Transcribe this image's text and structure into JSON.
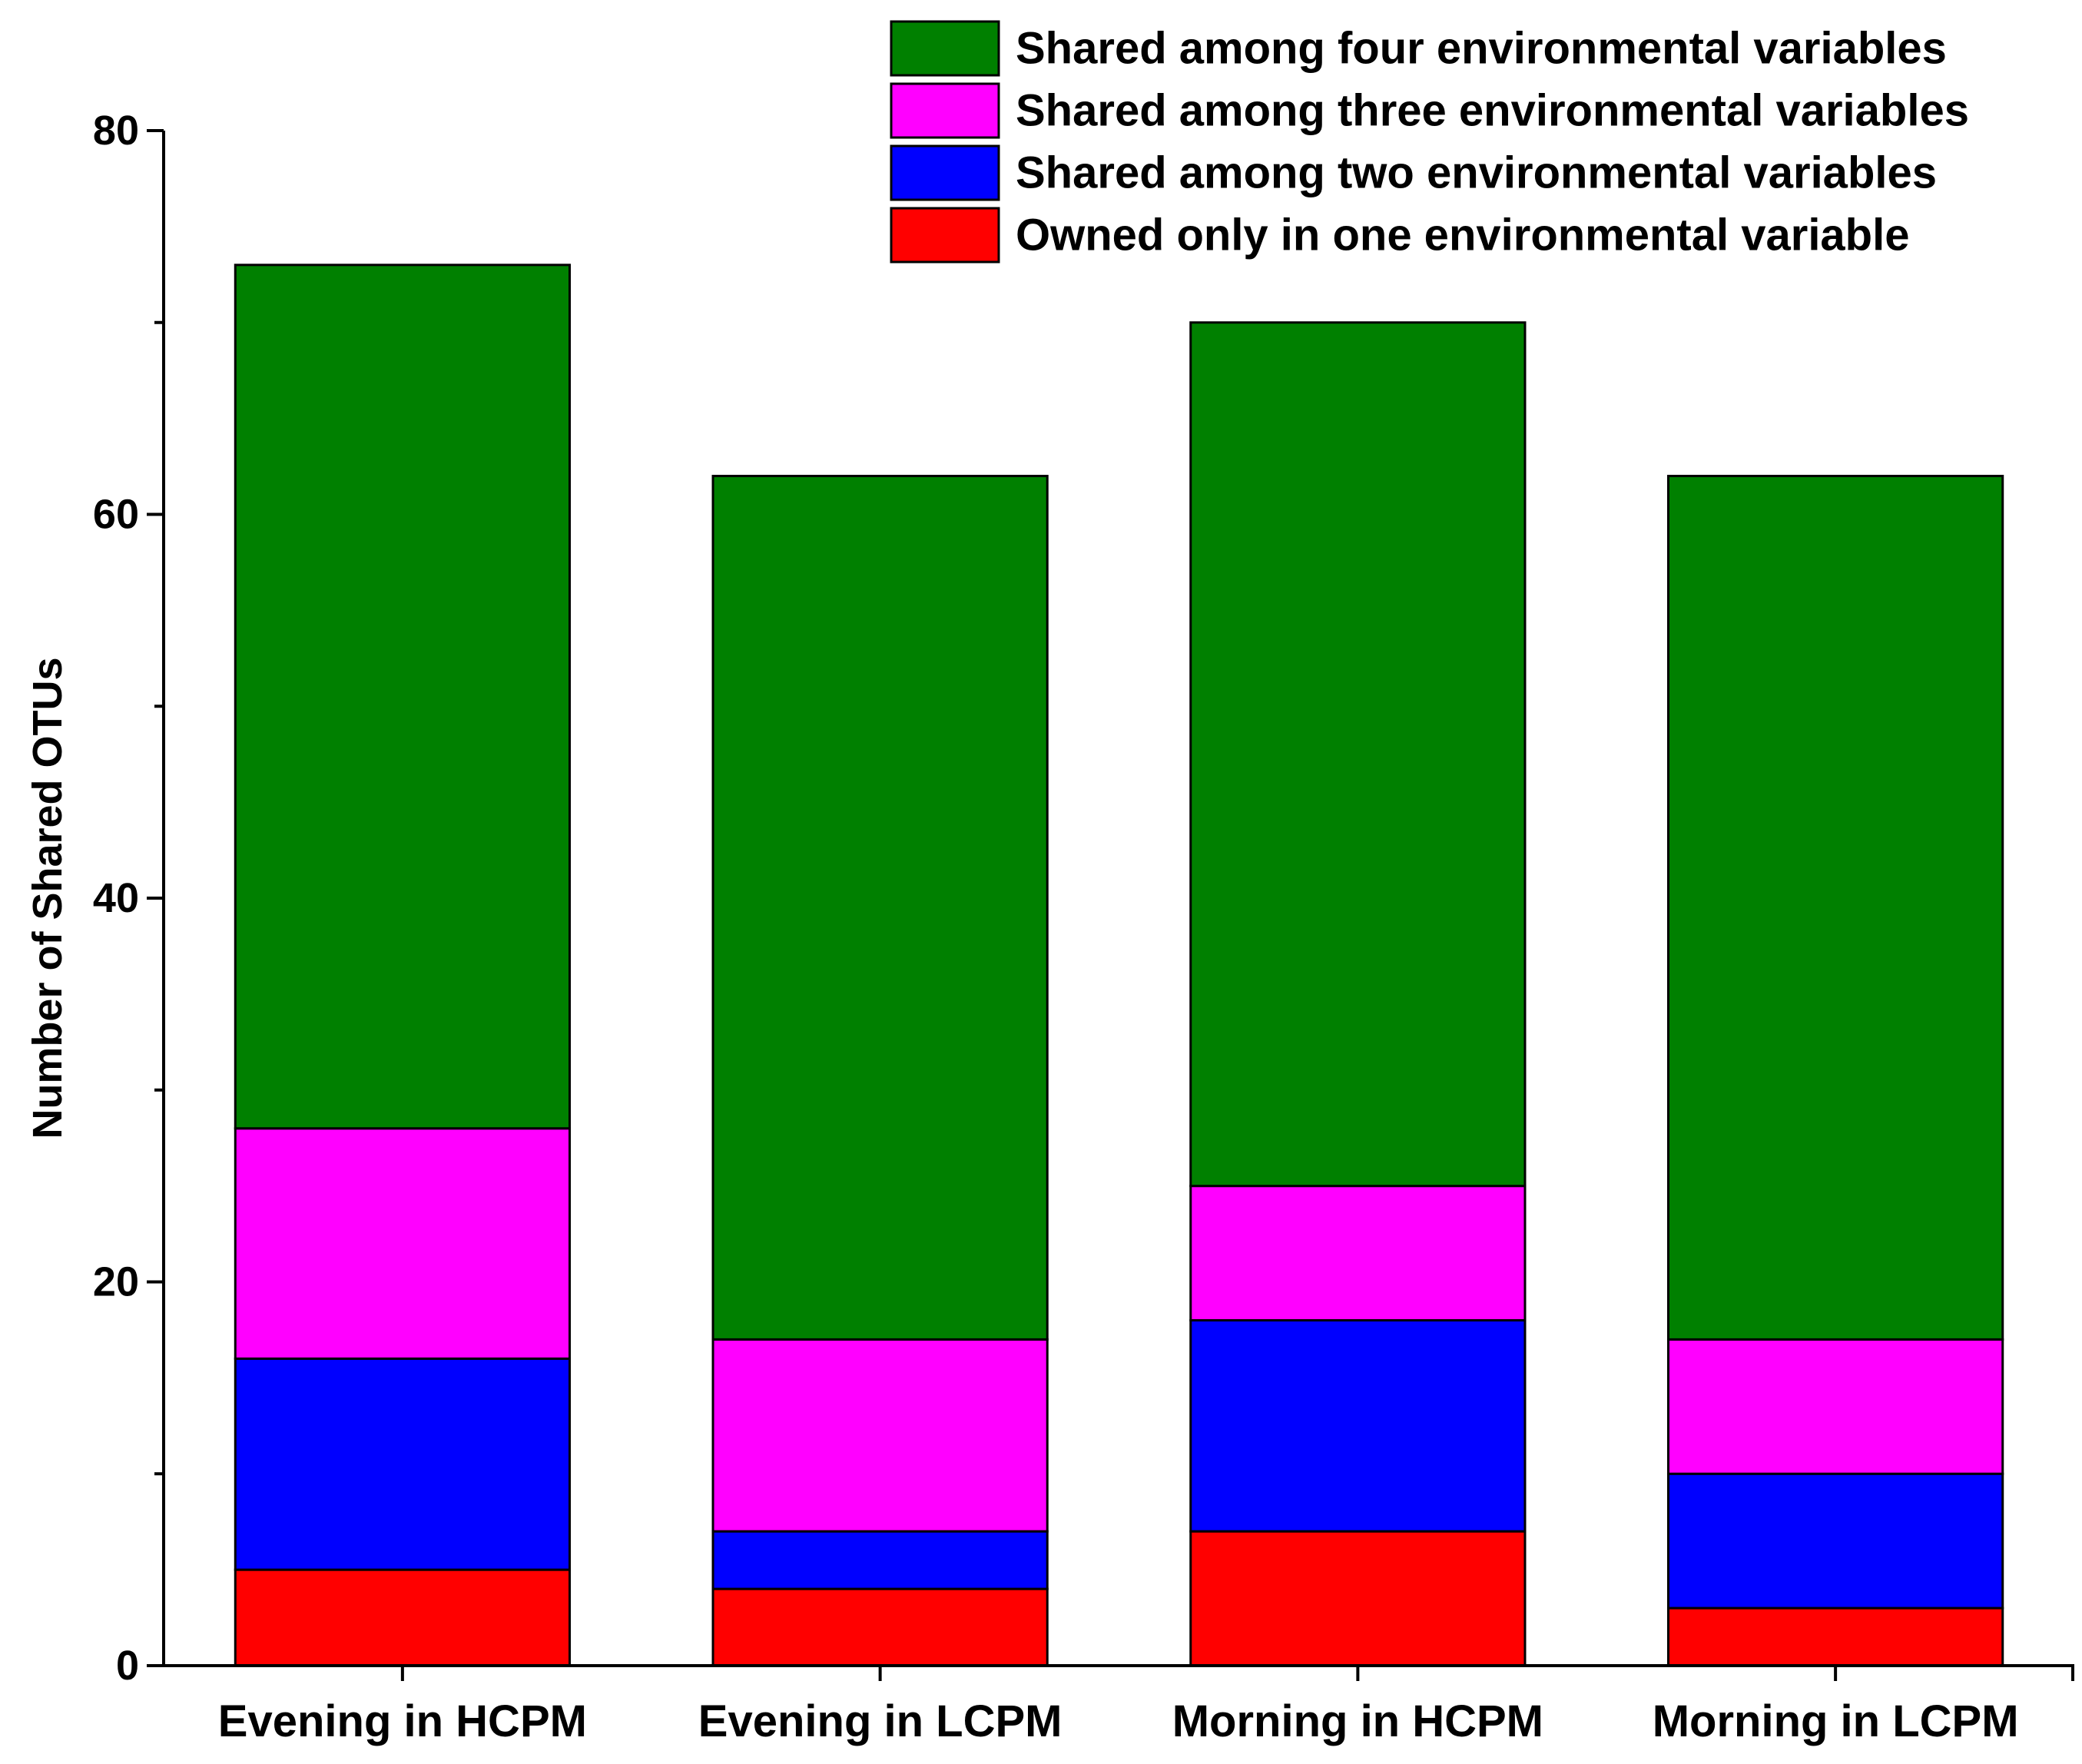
{
  "chart_data": {
    "type": "bar",
    "stacked": true,
    "title": "",
    "xlabel": "",
    "ylabel": "Number of Shared OTUs",
    "ylim": [
      0,
      80
    ],
    "y_major_ticks": [
      0,
      20,
      40,
      60,
      80
    ],
    "y_minor_ticks": [
      10,
      30,
      50,
      70
    ],
    "grid": false,
    "legend_position": "top-right",
    "categories": [
      "Evening in HCPM",
      "Evening in LCPM",
      "Morning in HCPM",
      "Morning in LCPM"
    ],
    "series": [
      {
        "name": "Owned only in one environmental variable",
        "color": "#ff0000",
        "values": [
          5,
          4,
          7,
          3
        ]
      },
      {
        "name": "Shared among two environmental variables",
        "color": "#0000ff",
        "values": [
          11,
          3,
          11,
          7
        ]
      },
      {
        "name": "Shared among three environmental variables",
        "color": "#ff00ff",
        "values": [
          12,
          10,
          7,
          7
        ]
      },
      {
        "name": "Shared among four environmental variables",
        "color": "#008000",
        "values": [
          45,
          45,
          45,
          45
        ]
      }
    ]
  }
}
